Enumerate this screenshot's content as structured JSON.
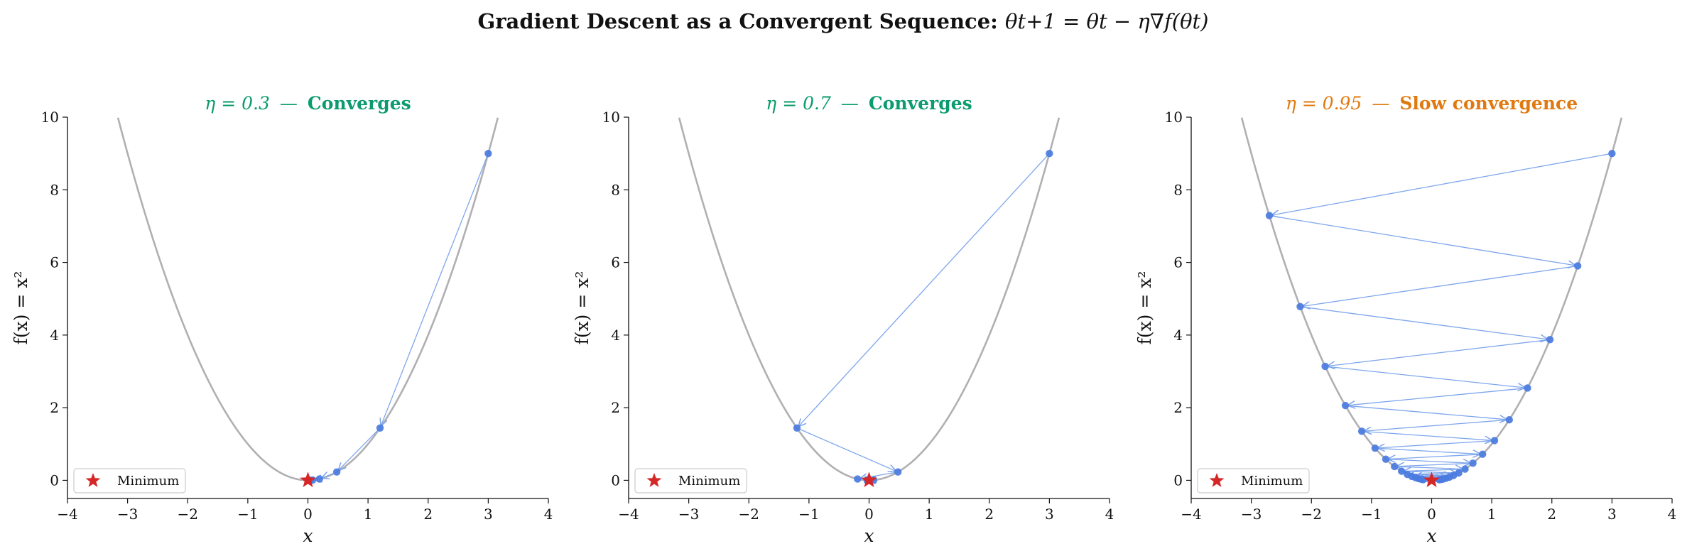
{
  "figure": {
    "suptitle_text": "Gradient Descent as a Convergent Sequence: ",
    "suptitle_math": "θt+1 = θt − η∇f(θt)"
  },
  "colors": {
    "curve": "#b0b0b4",
    "points": "#4a7be0",
    "arrows": "#7ea6ec",
    "minimum": "#d62728",
    "converges": "#0b9b6e",
    "slow": "#e07a10",
    "axis": "#111111"
  },
  "chart_data": [
    {
      "type": "line",
      "title_eta": "η = 0.3",
      "title_sep": "—",
      "title_status": "Converges",
      "title_color": "converges",
      "xlabel": "x",
      "ylabel": "f(x) = x²",
      "xlim": [
        -4,
        4
      ],
      "ylim": [
        -0.5,
        10
      ],
      "xticks": [
        -4,
        -3,
        -2,
        -1,
        0,
        1,
        2,
        3,
        4
      ],
      "yticks": [
        0,
        2,
        4,
        6,
        8,
        10
      ],
      "curve": {
        "function": "x^2",
        "x_range": [
          -3.16,
          3.16
        ]
      },
      "learning_rate": 0.3,
      "iterates_x": [
        3.0,
        1.2,
        0.48,
        0.192,
        0.0768,
        0.0307,
        0.0123,
        0.0049,
        0.002,
        0.0008
      ],
      "iterates_y": [
        9.0,
        1.44,
        0.2304,
        0.0369,
        0.0059,
        0.0009,
        0.0002,
        0.0,
        0.0,
        0.0
      ],
      "minimum": {
        "x": 0,
        "y": 0,
        "label": "Minimum"
      },
      "legend_position": "lower-left"
    },
    {
      "type": "line",
      "title_eta": "η = 0.7",
      "title_sep": "—",
      "title_status": "Converges",
      "title_color": "converges",
      "xlabel": "x",
      "ylabel": "f(x) = x²",
      "xlim": [
        -4,
        4
      ],
      "ylim": [
        -0.5,
        10
      ],
      "xticks": [
        -4,
        -3,
        -2,
        -1,
        0,
        1,
        2,
        3,
        4
      ],
      "yticks": [
        0,
        2,
        4,
        6,
        8,
        10
      ],
      "curve": {
        "function": "x^2",
        "x_range": [
          -3.16,
          3.16
        ]
      },
      "learning_rate": 0.7,
      "iterates_x": [
        3.0,
        -1.2,
        0.48,
        -0.192,
        0.0768,
        -0.0307,
        0.0123,
        -0.0049,
        0.002,
        -0.0008
      ],
      "iterates_y": [
        9.0,
        1.44,
        0.2304,
        0.0369,
        0.0059,
        0.0009,
        0.0002,
        0.0,
        0.0,
        0.0
      ],
      "minimum": {
        "x": 0,
        "y": 0,
        "label": "Minimum"
      },
      "legend_position": "lower-left"
    },
    {
      "type": "line",
      "title_eta": "η = 0.95",
      "title_sep": "—",
      "title_status": "Slow convergence",
      "title_color": "slow",
      "xlabel": "x",
      "ylabel": "f(x) = x²",
      "xlim": [
        -4,
        4
      ],
      "ylim": [
        -0.5,
        10
      ],
      "xticks": [
        -4,
        -3,
        -2,
        -1,
        0,
        1,
        2,
        3,
        4
      ],
      "yticks": [
        0,
        2,
        4,
        6,
        8,
        10
      ],
      "curve": {
        "function": "x^2",
        "x_range": [
          -3.16,
          3.16
        ]
      },
      "learning_rate": 0.95,
      "iterates_x": [
        3.0,
        -2.7,
        2.43,
        -2.187,
        1.9683,
        -1.7715,
        1.5943,
        -1.4349,
        1.2914,
        -1.1623,
        1.046,
        -0.9414,
        0.8473,
        -0.7626,
        0.6863,
        -0.6177,
        0.5559,
        -0.5003,
        0.4503,
        -0.4053,
        0.3647,
        -0.3283,
        0.2954,
        -0.2659,
        0.2393,
        -0.2154,
        0.1938,
        -0.1744,
        0.157,
        -0.1413,
        0.1272
      ],
      "iterates_y": [
        9.0,
        7.29,
        5.9049,
        4.783,
        3.8742,
        3.1381,
        2.5419,
        2.0589,
        1.6677,
        1.3509,
        1.0942,
        0.8863,
        0.7179,
        0.5815,
        0.471,
        0.3815,
        0.309,
        0.2503,
        0.2028,
        0.1643,
        0.133,
        0.1078,
        0.0873,
        0.0707,
        0.0573,
        0.0464,
        0.0376,
        0.0304,
        0.0246,
        0.02,
        0.0162
      ],
      "minimum": {
        "x": 0,
        "y": 0,
        "label": "Minimum"
      },
      "legend_position": "lower-left"
    }
  ]
}
